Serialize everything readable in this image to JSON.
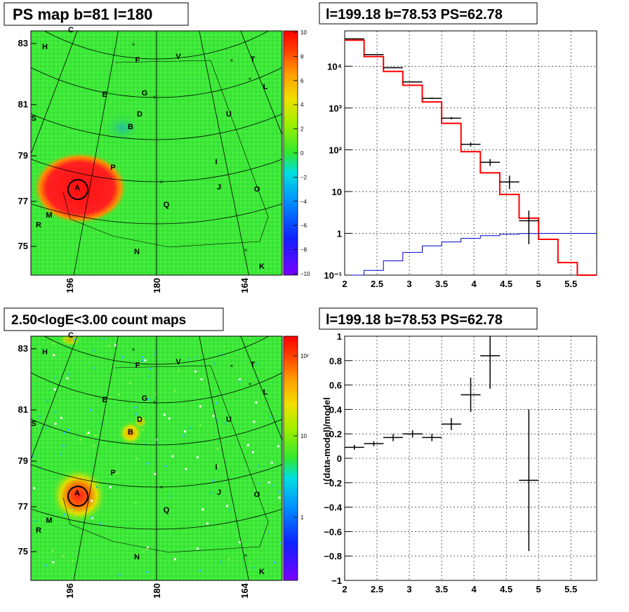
{
  "panels": {
    "top_left": {
      "title": "PS map b=81 l=180",
      "y_ticks": [
        "83",
        "81",
        "79",
        "77",
        "75"
      ],
      "x_ticks": [
        "196",
        "180",
        "164"
      ],
      "colorbar_ticks": [
        "10",
        "8",
        "6",
        "4",
        "2",
        "0",
        "−2",
        "−4",
        "−6",
        "−8",
        "−10"
      ],
      "source_labels": [
        "C",
        "H",
        "F",
        "V",
        "T",
        "L",
        "E",
        "G",
        "D",
        "U",
        "S",
        "B",
        "P",
        "I",
        "A",
        "J",
        "O",
        "Q",
        "M",
        "R",
        "N",
        "K"
      ]
    },
    "bottom_left": {
      "title": "2.50<logE<3.00 count maps",
      "y_ticks": [
        "83",
        "81",
        "79",
        "77",
        "75"
      ],
      "x_ticks": [
        "196",
        "180",
        "164"
      ],
      "colorbar_ticks": [
        "10²",
        "10",
        "1"
      ],
      "source_labels": [
        "C",
        "H",
        "F",
        "V",
        "T",
        "L",
        "E",
        "G",
        "D",
        "U",
        "S",
        "B",
        "P",
        "I",
        "A",
        "J",
        "O",
        "Q",
        "M",
        "R",
        "N",
        "K"
      ]
    },
    "top_right": {
      "title": "l=199.18 b=78.53 PS=62.78"
    },
    "bottom_right": {
      "title": "l=199.18 b=78.53 PS=62.78"
    }
  },
  "chart_data": [
    {
      "type": "heatmap",
      "title": "PS map b=81 l=180",
      "xlabel": "",
      "ylabel": "",
      "x_ticks": [
        196,
        180,
        164
      ],
      "y_ticks": [
        83,
        81,
        79,
        77,
        75
      ],
      "color_range": [
        -10,
        10
      ],
      "background_level": 0,
      "hotspot": {
        "label": "A",
        "level": 10
      },
      "colors": {
        "background": "#3ee83a",
        "hot": "#ff2020",
        "circle": "#000000"
      }
    },
    {
      "type": "bar",
      "title": "l=199.18 b=78.53 PS=62.78",
      "y_scale": "log",
      "xlim": [
        2,
        5.9
      ],
      "ylim": [
        0.1,
        70000
      ],
      "x_ticks": [
        "2",
        "2.5",
        "3",
        "3.5",
        "4",
        "4.5",
        "5",
        "5.5"
      ],
      "y_ticks": [
        "10⁻¹",
        "1",
        "10",
        "10²",
        "10³",
        "10⁴"
      ],
      "grid": true,
      "series": [
        {
          "color": "#ff0000",
          "kind": "step",
          "bin_edges": [
            2.0,
            2.3,
            2.6,
            2.9,
            3.2,
            3.5,
            3.8,
            4.1,
            4.4,
            4.7,
            5.0,
            5.3,
            5.6,
            5.9
          ],
          "values": [
            42000,
            17000,
            7500,
            3500,
            1400,
            430,
            90,
            28,
            8.5,
            2.3,
            0.72,
            0.2,
            0.1
          ]
        },
        {
          "color": "#0000cc",
          "kind": "step",
          "bin_edges": [
            2.0,
            2.3,
            2.6,
            2.9,
            3.2,
            3.5,
            3.8,
            4.1,
            4.4,
            4.7,
            5.0,
            5.3,
            5.6,
            5.9
          ],
          "values": [
            0.1,
            0.13,
            0.22,
            0.35,
            0.5,
            0.62,
            0.76,
            0.88,
            0.95,
            0.99,
            1.0,
            1.0,
            1.0
          ]
        },
        {
          "color": "#000000",
          "kind": "points_with_errors",
          "x": [
            2.15,
            2.45,
            2.75,
            3.05,
            3.35,
            3.65,
            3.95,
            4.25,
            4.55,
            4.85
          ],
          "y": [
            45000,
            19000,
            9200,
            4200,
            1700,
            570,
            135,
            50,
            17,
            2.0
          ],
          "y_low": [
            43500,
            18400,
            8900,
            4050,
            1630,
            535,
            120,
            41,
            11.5,
            0.55
          ],
          "y_high": [
            46500,
            19600,
            9500,
            4350,
            1770,
            605,
            150,
            60,
            24,
            3.5
          ]
        }
      ]
    },
    {
      "type": "scatter",
      "title": "l=199.18 b=78.53 PS=62.78",
      "ylabel": "(data-model)/model",
      "xlim": [
        2,
        5.9
      ],
      "ylim": [
        -1,
        1
      ],
      "x_ticks": [
        "2",
        "2.5",
        "3",
        "3.5",
        "4",
        "4.5",
        "5",
        "5.5"
      ],
      "y_ticks": [
        "1",
        "0.8",
        "0.6",
        "0.4",
        "0.2",
        "0",
        "−0.2",
        "−0.4",
        "−0.6",
        "−0.8",
        "−1"
      ],
      "grid": true,
      "series": [
        {
          "color": "#000000",
          "x": [
            2.15,
            2.45,
            2.75,
            3.05,
            3.35,
            3.65,
            3.95,
            4.25,
            4.85
          ],
          "y": [
            0.09,
            0.12,
            0.17,
            0.2,
            0.17,
            0.28,
            0.52,
            0.84,
            -0.18
          ],
          "err": [
            0.02,
            0.02,
            0.03,
            0.03,
            0.03,
            0.05,
            0.14,
            0.27,
            0.58
          ]
        }
      ]
    },
    {
      "type": "heatmap",
      "title": "2.50<logE<3.00 count maps",
      "x_ticks": [
        196,
        180,
        164
      ],
      "y_ticks": [
        83,
        81,
        79,
        77,
        75
      ],
      "color_scale": "log",
      "color_ticks": [
        "10²",
        "10",
        "1"
      ],
      "hotspots": [
        {
          "label": "A",
          "level": "high"
        },
        {
          "label": "B",
          "level": "medium"
        },
        {
          "label": "D",
          "level": "low"
        }
      ],
      "colors": {
        "background": "#3ee83a",
        "hot": "#ff2020"
      }
    }
  ]
}
